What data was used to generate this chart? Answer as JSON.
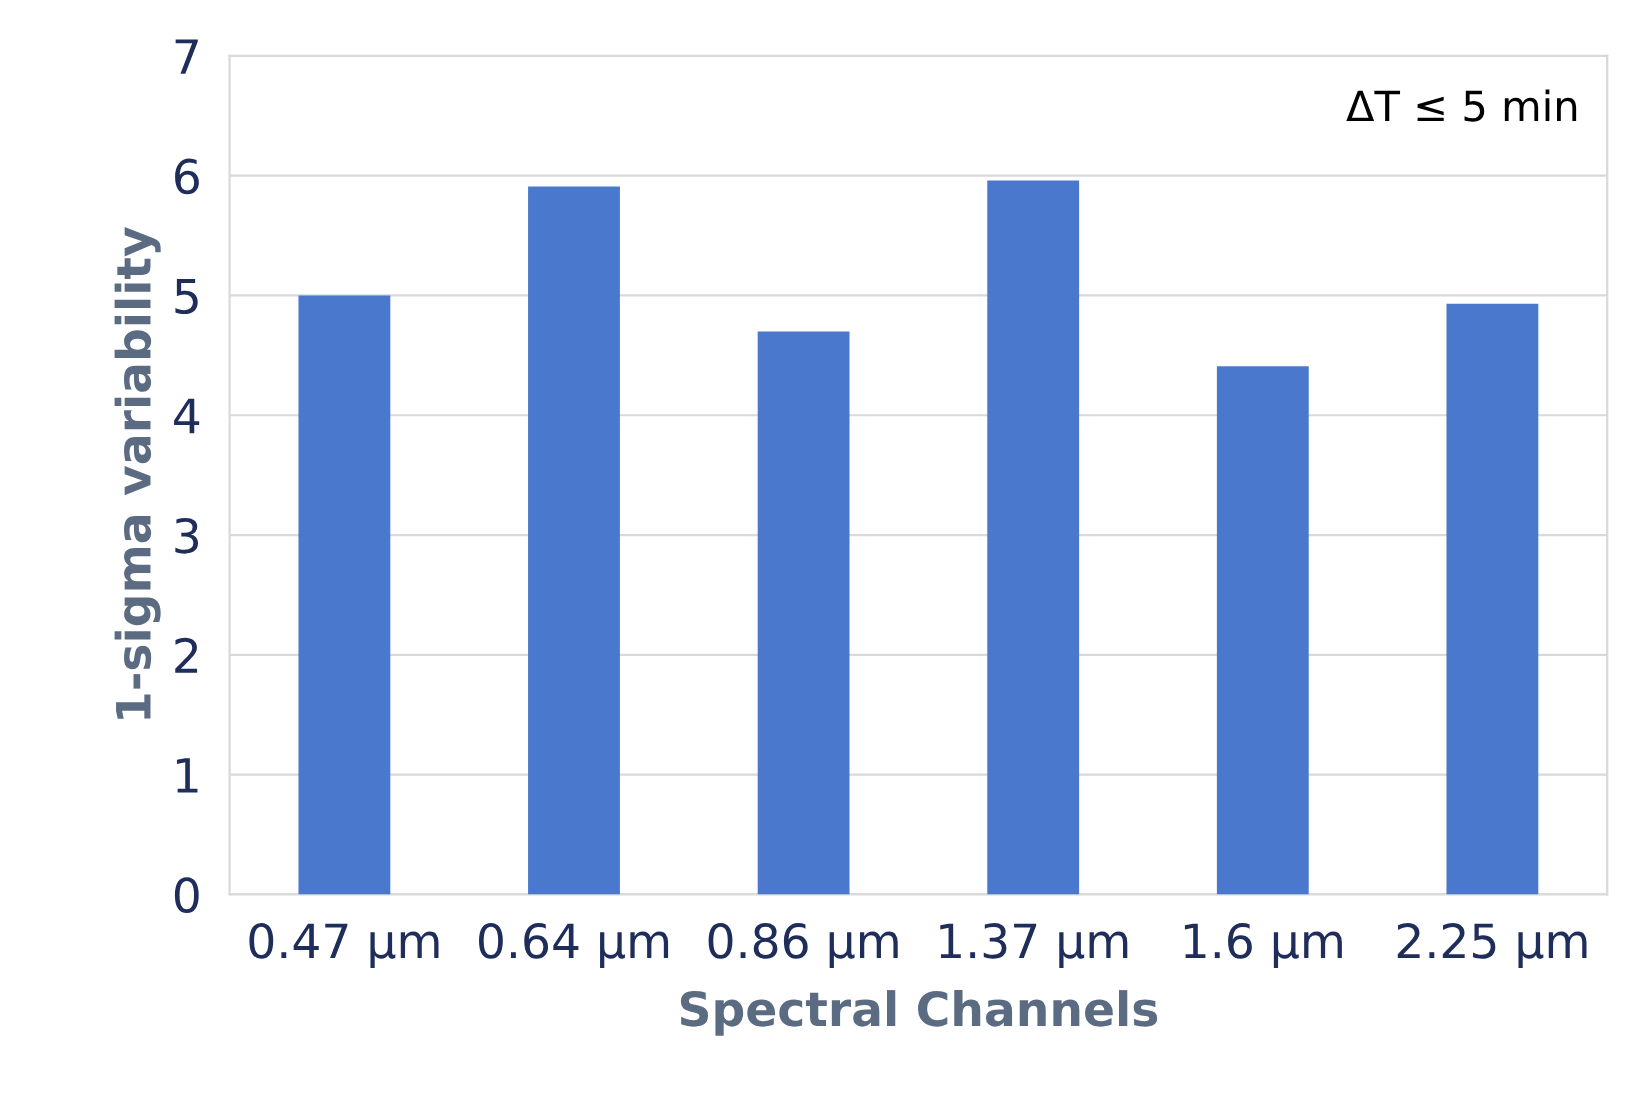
{
  "chart_data": {
    "type": "bar",
    "categories": [
      "0.47 µm",
      "0.64 µm",
      "0.86 µm",
      "1.37 µm",
      "1.6 µm",
      "2.25 µm"
    ],
    "values": [
      5.0,
      5.91,
      4.7,
      5.96,
      4.41,
      4.93
    ],
    "color": "#4a78cc",
    "xlabel": "Spectral Channels",
    "ylabel": "1-sigma variability",
    "annotations": [
      "ΔT ≤ 5 min"
    ],
    "ylim": [
      0,
      7
    ],
    "yticks": [
      0,
      1,
      2,
      3,
      4,
      5,
      6,
      7
    ],
    "grid": "y"
  }
}
